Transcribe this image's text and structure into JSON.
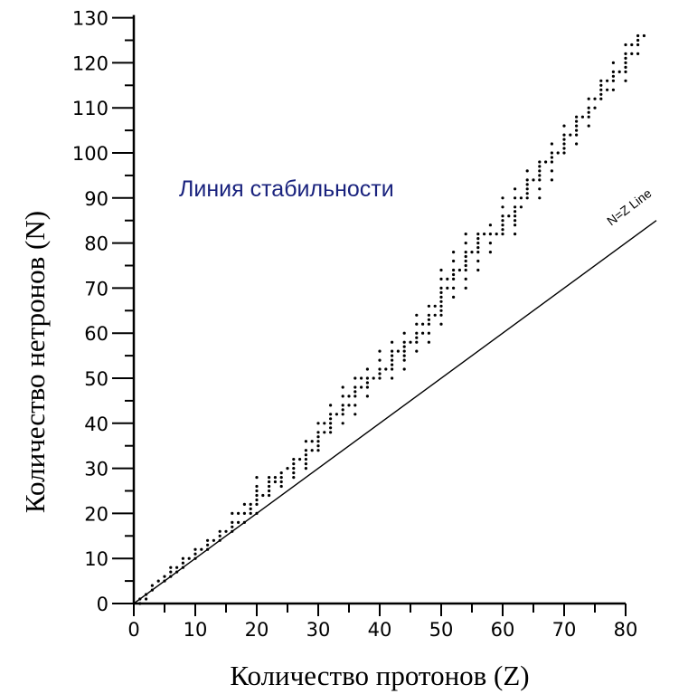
{
  "chart_data": {
    "type": "scatter",
    "xlabel": "Количество протонов (Z)",
    "ylabel": "Количество нетронов (N)",
    "xlim": [
      0,
      85
    ],
    "ylim": [
      0,
      130
    ],
    "x_ticks": [
      0,
      10,
      20,
      30,
      40,
      50,
      60,
      70,
      80
    ],
    "y_ticks": [
      0,
      10,
      20,
      30,
      40,
      50,
      60,
      70,
      80,
      90,
      100,
      110,
      120,
      130
    ],
    "grid": false,
    "annotations": [
      {
        "text": "Линия стабильности",
        "color": "#1a237e"
      },
      {
        "text": "N=Z Line"
      }
    ],
    "reference_line": {
      "label": "N=Z Line",
      "from": [
        0,
        0
      ],
      "to": [
        85,
        85
      ]
    },
    "stability_band": [
      [
        1,
        0
      ],
      [
        1,
        1
      ],
      [
        2,
        1
      ],
      [
        2,
        2
      ],
      [
        3,
        3
      ],
      [
        3,
        4
      ],
      [
        4,
        5
      ],
      [
        5,
        5
      ],
      [
        5,
        6
      ],
      [
        6,
        6
      ],
      [
        6,
        7
      ],
      [
        6,
        8
      ],
      [
        7,
        7
      ],
      [
        7,
        8
      ],
      [
        8,
        8
      ],
      [
        8,
        9
      ],
      [
        8,
        10
      ],
      [
        9,
        10
      ],
      [
        10,
        10
      ],
      [
        10,
        11
      ],
      [
        10,
        12
      ],
      [
        11,
        12
      ],
      [
        12,
        12
      ],
      [
        12,
        13
      ],
      [
        12,
        14
      ],
      [
        13,
        14
      ],
      [
        14,
        14
      ],
      [
        14,
        15
      ],
      [
        14,
        16
      ],
      [
        15,
        16
      ],
      [
        16,
        16
      ],
      [
        16,
        17
      ],
      [
        16,
        18
      ],
      [
        16,
        20
      ],
      [
        17,
        18
      ],
      [
        17,
        20
      ],
      [
        18,
        18
      ],
      [
        18,
        20
      ],
      [
        18,
        22
      ],
      [
        19,
        20
      ],
      [
        19,
        21
      ],
      [
        19,
        22
      ],
      [
        20,
        20
      ],
      [
        20,
        22
      ],
      [
        20,
        23
      ],
      [
        20,
        24
      ],
      [
        20,
        25
      ],
      [
        20,
        26
      ],
      [
        20,
        28
      ],
      [
        21,
        24
      ],
      [
        22,
        24
      ],
      [
        22,
        25
      ],
      [
        22,
        26
      ],
      [
        22,
        27
      ],
      [
        22,
        28
      ],
      [
        23,
        27
      ],
      [
        23,
        28
      ],
      [
        24,
        26
      ],
      [
        24,
        27
      ],
      [
        24,
        28
      ],
      [
        24,
        29
      ],
      [
        25,
        30
      ],
      [
        26,
        28
      ],
      [
        26,
        29
      ],
      [
        26,
        30
      ],
      [
        26,
        31
      ],
      [
        26,
        32
      ],
      [
        27,
        32
      ],
      [
        28,
        30
      ],
      [
        28,
        31
      ],
      [
        28,
        32
      ],
      [
        28,
        33
      ],
      [
        28,
        34
      ],
      [
        28,
        36
      ],
      [
        29,
        34
      ],
      [
        29,
        36
      ],
      [
        30,
        34
      ],
      [
        30,
        35
      ],
      [
        30,
        36
      ],
      [
        30,
        37
      ],
      [
        30,
        38
      ],
      [
        30,
        40
      ],
      [
        31,
        38
      ],
      [
        31,
        40
      ],
      [
        32,
        38
      ],
      [
        32,
        39
      ],
      [
        32,
        40
      ],
      [
        32,
        41
      ],
      [
        32,
        42
      ],
      [
        32,
        44
      ],
      [
        33,
        42
      ],
      [
        34,
        40
      ],
      [
        34,
        42
      ],
      [
        34,
        43
      ],
      [
        34,
        44
      ],
      [
        34,
        46
      ],
      [
        34,
        48
      ],
      [
        35,
        44
      ],
      [
        35,
        46
      ],
      [
        36,
        42
      ],
      [
        36,
        44
      ],
      [
        36,
        46
      ],
      [
        36,
        47
      ],
      [
        36,
        48
      ],
      [
        36,
        50
      ],
      [
        37,
        48
      ],
      [
        37,
        50
      ],
      [
        38,
        46
      ],
      [
        38,
        48
      ],
      [
        38,
        49
      ],
      [
        38,
        50
      ],
      [
        38,
        52
      ],
      [
        39,
        50
      ],
      [
        40,
        50
      ],
      [
        40,
        51
      ],
      [
        40,
        52
      ],
      [
        40,
        54
      ],
      [
        40,
        56
      ],
      [
        41,
        52
      ],
      [
        42,
        50
      ],
      [
        42,
        52
      ],
      [
        42,
        53
      ],
      [
        42,
        54
      ],
      [
        42,
        55
      ],
      [
        42,
        56
      ],
      [
        42,
        58
      ],
      [
        43,
        56
      ],
      [
        44,
        52
      ],
      [
        44,
        54
      ],
      [
        44,
        55
      ],
      [
        44,
        56
      ],
      [
        44,
        57
      ],
      [
        44,
        58
      ],
      [
        44,
        60
      ],
      [
        45,
        58
      ],
      [
        46,
        56
      ],
      [
        46,
        58
      ],
      [
        46,
        59
      ],
      [
        46,
        60
      ],
      [
        46,
        62
      ],
      [
        46,
        64
      ],
      [
        47,
        60
      ],
      [
        47,
        62
      ],
      [
        48,
        58
      ],
      [
        48,
        60
      ],
      [
        48,
        62
      ],
      [
        48,
        63
      ],
      [
        48,
        64
      ],
      [
        48,
        66
      ],
      [
        49,
        64
      ],
      [
        49,
        66
      ],
      [
        50,
        62
      ],
      [
        50,
        64
      ],
      [
        50,
        65
      ],
      [
        50,
        66
      ],
      [
        50,
        67
      ],
      [
        50,
        68
      ],
      [
        50,
        69
      ],
      [
        50,
        70
      ],
      [
        50,
        72
      ],
      [
        50,
        74
      ],
      [
        51,
        70
      ],
      [
        51,
        72
      ],
      [
        52,
        68
      ],
      [
        52,
        70
      ],
      [
        52,
        72
      ],
      [
        52,
        73
      ],
      [
        52,
        74
      ],
      [
        52,
        76
      ],
      [
        52,
        78
      ],
      [
        53,
        74
      ],
      [
        54,
        70
      ],
      [
        54,
        72
      ],
      [
        54,
        74
      ],
      [
        54,
        75
      ],
      [
        54,
        76
      ],
      [
        54,
        77
      ],
      [
        54,
        78
      ],
      [
        54,
        80
      ],
      [
        54,
        82
      ],
      [
        55,
        78
      ],
      [
        56,
        74
      ],
      [
        56,
        76
      ],
      [
        56,
        78
      ],
      [
        56,
        79
      ],
      [
        56,
        80
      ],
      [
        56,
        81
      ],
      [
        56,
        82
      ],
      [
        57,
        82
      ],
      [
        58,
        78
      ],
      [
        58,
        80
      ],
      [
        58,
        82
      ],
      [
        58,
        84
      ],
      [
        59,
        82
      ],
      [
        60,
        82
      ],
      [
        60,
        83
      ],
      [
        60,
        84
      ],
      [
        60,
        85
      ],
      [
        60,
        86
      ],
      [
        60,
        88
      ],
      [
        60,
        90
      ],
      [
        61,
        86
      ],
      [
        62,
        82
      ],
      [
        62,
        84
      ],
      [
        62,
        85
      ],
      [
        62,
        86
      ],
      [
        62,
        87
      ],
      [
        62,
        88
      ],
      [
        62,
        90
      ],
      [
        62,
        92
      ],
      [
        63,
        88
      ],
      [
        63,
        90
      ],
      [
        64,
        90
      ],
      [
        64,
        91
      ],
      [
        64,
        92
      ],
      [
        64,
        93
      ],
      [
        64,
        94
      ],
      [
        64,
        96
      ],
      [
        65,
        94
      ],
      [
        66,
        90
      ],
      [
        66,
        92
      ],
      [
        66,
        94
      ],
      [
        66,
        95
      ],
      [
        66,
        96
      ],
      [
        66,
        97
      ],
      [
        66,
        98
      ],
      [
        67,
        98
      ],
      [
        68,
        94
      ],
      [
        68,
        96
      ],
      [
        68,
        98
      ],
      [
        68,
        99
      ],
      [
        68,
        100
      ],
      [
        68,
        102
      ],
      [
        69,
        100
      ],
      [
        70,
        100
      ],
      [
        70,
        101
      ],
      [
        70,
        102
      ],
      [
        70,
        103
      ],
      [
        70,
        104
      ],
      [
        70,
        106
      ],
      [
        71,
        104
      ],
      [
        72,
        102
      ],
      [
        72,
        104
      ],
      [
        72,
        105
      ],
      [
        72,
        106
      ],
      [
        72,
        107
      ],
      [
        72,
        108
      ],
      [
        73,
        108
      ],
      [
        74,
        106
      ],
      [
        74,
        108
      ],
      [
        74,
        109
      ],
      [
        74,
        110
      ],
      [
        74,
        112
      ],
      [
        75,
        110
      ],
      [
        75,
        112
      ],
      [
        76,
        112
      ],
      [
        76,
        113
      ],
      [
        76,
        114
      ],
      [
        76,
        115
      ],
      [
        76,
        116
      ],
      [
        77,
        114
      ],
      [
        77,
        116
      ],
      [
        78,
        114
      ],
      [
        78,
        116
      ],
      [
        78,
        117
      ],
      [
        78,
        118
      ],
      [
        78,
        120
      ],
      [
        79,
        118
      ],
      [
        80,
        116
      ],
      [
        80,
        118
      ],
      [
        80,
        119
      ],
      [
        80,
        120
      ],
      [
        80,
        121
      ],
      [
        80,
        122
      ],
      [
        80,
        124
      ],
      [
        81,
        122
      ],
      [
        81,
        124
      ],
      [
        82,
        122
      ],
      [
        82,
        124
      ],
      [
        82,
        125
      ],
      [
        82,
        126
      ],
      [
        83,
        126
      ]
    ]
  }
}
